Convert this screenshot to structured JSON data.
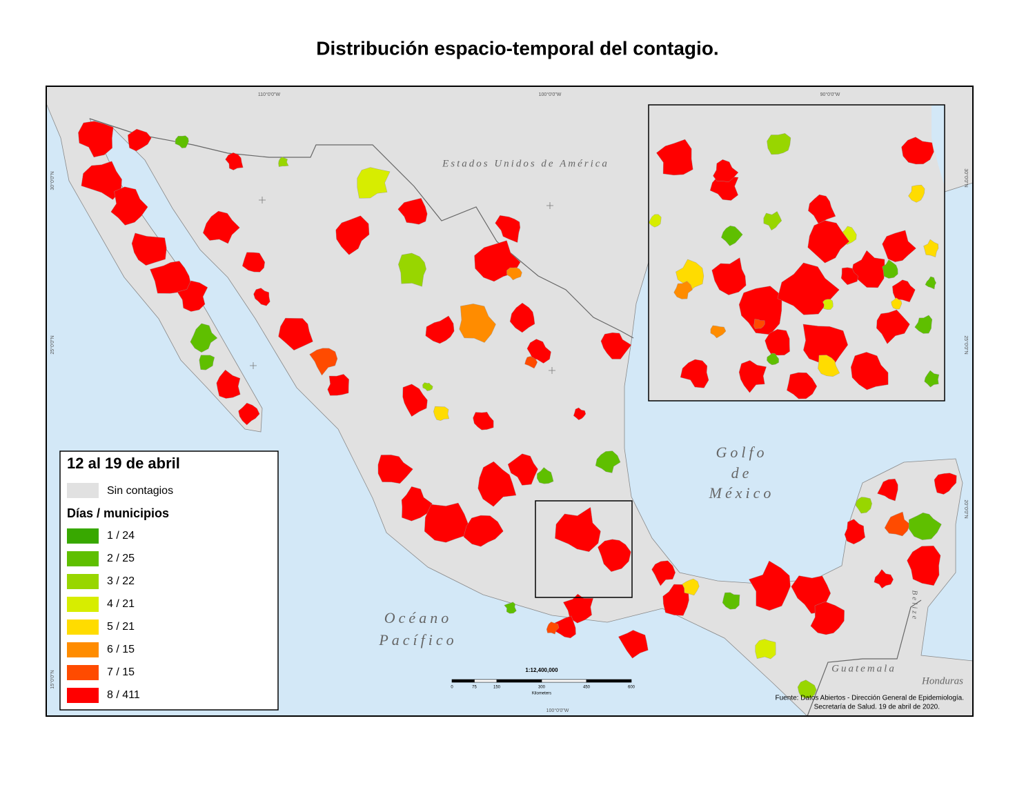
{
  "title": "Distribución espacio-temporal del contagio.",
  "map": {
    "labels": {
      "usa": "Estados Unidos de América",
      "gulf": [
        "Golfo",
        "de",
        "México"
      ],
      "ocean": [
        "Océano",
        "Pacífico"
      ],
      "guatemala": "Guatemala",
      "honduras": "Honduras",
      "belize": "Belize"
    },
    "graticule": {
      "lon": [
        "110°0'0\"W",
        "100°0'0\"W",
        "90°0'0\"W"
      ],
      "lat": [
        "30°0'0\"N",
        "25°0'0\"N",
        "20°0'0\"N",
        "15°0'0\"N"
      ]
    },
    "scale": {
      "ratio": "1:12,400,000",
      "ticks": [
        0,
        75,
        150,
        300,
        450,
        600
      ],
      "unit": "Kilometers"
    },
    "source": [
      "Fuente: Datos Abiertos - Dirección General de Epidemiología.",
      "Secretaría de Salud. 19 de abril de 2020."
    ]
  },
  "legend": {
    "title": "12 al 19 de abril",
    "no_cases": {
      "label": "Sin contagios",
      "color": "#e1e1e1"
    },
    "subtitle": "Días / municipios",
    "items": [
      {
        "label": "1 / 24",
        "color": "#38a800"
      },
      {
        "label": "2 / 25",
        "color": "#5fbf00"
      },
      {
        "label": "3 / 22",
        "color": "#98d600"
      },
      {
        "label": "4 / 21",
        "color": "#d7ed00"
      },
      {
        "label": "5 / 21",
        "color": "#ffdc00"
      },
      {
        "label": "6 / 15",
        "color": "#ff8c00"
      },
      {
        "label": "7 / 15",
        "color": "#ff4b00"
      },
      {
        "label": "8 / 411",
        "color": "#ff0000"
      }
    ]
  }
}
